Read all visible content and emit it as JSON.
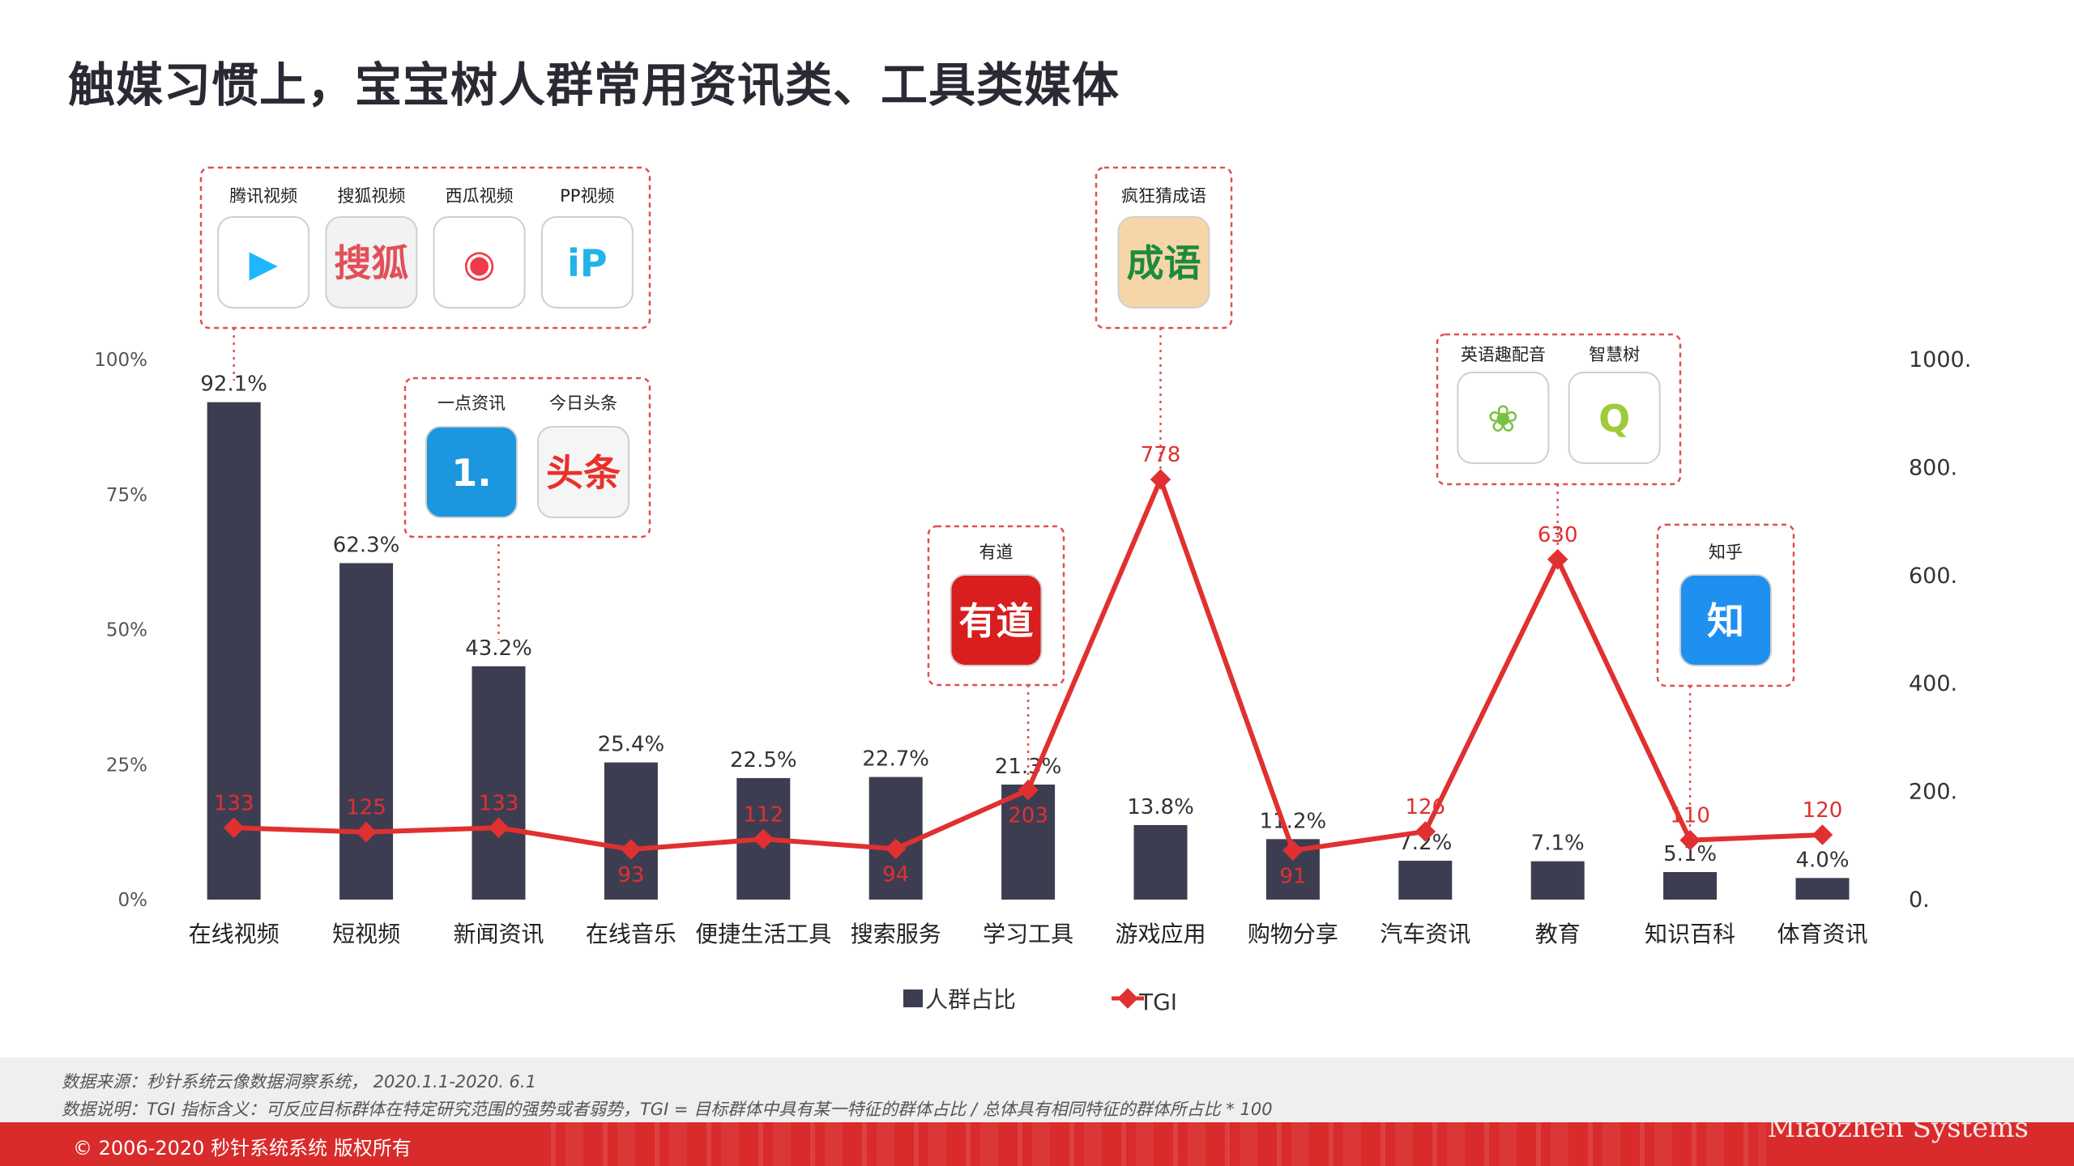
{
  "page": {
    "title": "触媒习惯上，宝宝树人群常用资讯类、工具类媒体",
    "source_note": "数据来源：秒针系统云像数据洞察系统， 2020.1.1-2020. 6.1",
    "definition_note": "数据说明：TGI 指标含义：可反应目标群体在特定研究范围的强势或者弱势，TGI = 目标群体中具有某一特征的群体占比 / 总体具有相同特征的群体所占比 * 100",
    "copyright": "© 2006-2020 秒针系统系统 版权所有",
    "brand_text": "Miaozhen Systems"
  },
  "chart_data": {
    "type": "bar",
    "categories": [
      "在线视频",
      "短视频",
      "新闻资讯",
      "在线音乐",
      "便捷生活工具",
      "搜索服务",
      "学习工具",
      "游戏应用",
      "购物分享",
      "汽车资讯",
      "教育",
      "知识百科",
      "体育资讯"
    ],
    "series": [
      {
        "name": "人群占比",
        "type": "bar",
        "axis": "left",
        "color": "#3d3d52",
        "values": [
          92.1,
          62.3,
          43.2,
          25.4,
          22.5,
          22.7,
          21.3,
          13.8,
          11.2,
          7.2,
          7.1,
          5.1,
          4.0
        ],
        "labels": [
          "92.1%",
          "62.3%",
          "43.2%",
          "25.4%",
          "22.5%",
          "22.7%",
          "21.3%",
          "13.8%",
          "11.2%",
          "7.2%",
          "7.1%",
          "5.1%",
          "4.0%"
        ]
      },
      {
        "name": "TGI",
        "type": "line",
        "axis": "right",
        "color": "#e03030",
        "values": [
          133,
          125,
          133,
          93,
          112,
          94,
          203,
          778,
          91,
          126,
          630,
          110,
          120
        ],
        "labels": [
          "133",
          "125",
          "133",
          "93",
          "112",
          "94",
          "203",
          "778",
          "91",
          "126",
          "630",
          "110",
          "120"
        ]
      }
    ],
    "y_left": {
      "range": [
        0,
        100
      ],
      "ticks": [
        "0%",
        "25%",
        "50%",
        "75%",
        "100%"
      ]
    },
    "y_right": {
      "range": [
        0,
        1000
      ],
      "ticks": [
        "0.",
        "200.",
        "400.",
        "600.",
        "800.",
        "1000."
      ]
    },
    "legend": {
      "position": "bottom",
      "items": [
        "人群占比",
        "TGI"
      ]
    },
    "callouts": [
      {
        "category_index": 0,
        "apps": [
          {
            "name": "腾讯视频",
            "icon": "tencent-video-icon"
          },
          {
            "name": "搜狐视频",
            "icon": "sohu-video-icon"
          },
          {
            "name": "西瓜视频",
            "icon": "xigua-video-icon"
          },
          {
            "name": "PP视频",
            "icon": "pp-video-icon"
          }
        ]
      },
      {
        "category_index": 2,
        "apps": [
          {
            "name": "一点资讯",
            "icon": "yidian-news-icon"
          },
          {
            "name": "今日头条",
            "icon": "toutiao-icon"
          }
        ]
      },
      {
        "category_index": 6,
        "apps": [
          {
            "name": "有道",
            "icon": "youdao-icon"
          }
        ]
      },
      {
        "category_index": 7,
        "apps": [
          {
            "name": "疯狂猜成语",
            "icon": "idiom-game-icon"
          }
        ]
      },
      {
        "category_index": 10,
        "apps": [
          {
            "name": "英语趣配音",
            "icon": "english-dubbing-icon"
          },
          {
            "name": "智慧树",
            "icon": "zhihuishu-icon"
          }
        ]
      },
      {
        "category_index": 11,
        "apps": [
          {
            "name": "知乎",
            "icon": "zhihu-icon"
          }
        ]
      }
    ]
  }
}
